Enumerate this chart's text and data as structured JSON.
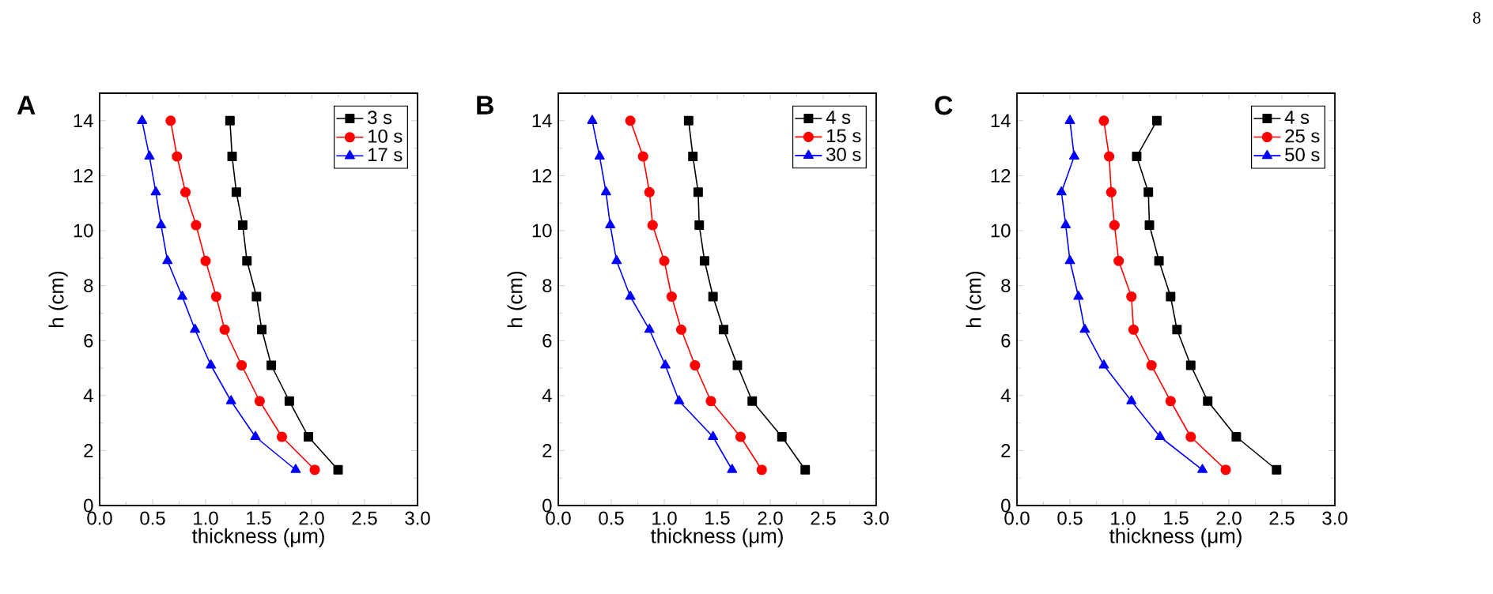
{
  "chart_data": [
    {
      "type": "line",
      "title": "A",
      "xlabel": "thickness (μm)",
      "ylabel": "h (cm)",
      "xlim": [
        0,
        3
      ],
      "ylim": [
        0,
        15
      ],
      "xticks": [
        {
          "value": 0,
          "label": "0.0"
        },
        0.5,
        {
          "value": 1,
          "label": "1.0"
        },
        1.5,
        {
          "value": 2,
          "label": "2.0"
        },
        2.5,
        {
          "value": 3,
          "label": "3.0"
        }
      ],
      "yticks": [
        0,
        2,
        4,
        6,
        8,
        10,
        12,
        14
      ],
      "legend": "top right",
      "line_style": "solid",
      "series": [
        {
          "name": "3 s",
          "color": "#000000",
          "marker": "square",
          "x": [
            1.23,
            1.25,
            1.29,
            1.35,
            1.39,
            1.48,
            1.53,
            1.62,
            1.79,
            1.97,
            2.25
          ],
          "values": [
            14,
            12.7,
            11.4,
            10.2,
            8.9,
            7.6,
            6.4,
            5.1,
            3.8,
            2.5,
            1.3
          ]
        },
        {
          "name": "10 s",
          "color": "#ff0000",
          "marker": "circle",
          "x": [
            0.67,
            0.73,
            0.81,
            0.91,
            1.0,
            1.1,
            1.18,
            1.34,
            1.51,
            1.72,
            2.03
          ],
          "values": [
            14,
            12.7,
            11.4,
            10.2,
            8.9,
            7.6,
            6.4,
            5.1,
            3.8,
            2.5,
            1.3
          ]
        },
        {
          "name": "17 s",
          "color": "#0000ff",
          "marker": "triangle",
          "x": [
            0.4,
            0.47,
            0.53,
            0.58,
            0.64,
            0.78,
            0.9,
            1.05,
            1.24,
            1.47,
            1.85
          ],
          "values": [
            14,
            12.7,
            11.4,
            10.2,
            8.9,
            7.6,
            6.4,
            5.1,
            3.8,
            2.5,
            1.3
          ]
        }
      ]
    },
    {
      "type": "line",
      "title": "B",
      "xlabel": "thickness (μm)",
      "ylabel": "h (cm)",
      "xlim": [
        0,
        3
      ],
      "ylim": [
        0,
        15
      ],
      "xticks": [
        {
          "value": 0,
          "label": "0.0"
        },
        0.5,
        {
          "value": 1,
          "label": "1.0"
        },
        1.5,
        {
          "value": 2,
          "label": "2.0"
        },
        2.5,
        {
          "value": 3,
          "label": "3.0"
        }
      ],
      "yticks": [
        0,
        2,
        4,
        6,
        8,
        10,
        12,
        14
      ],
      "legend": "top right",
      "line_style": "solid",
      "series": [
        {
          "name": "4 s",
          "color": "#000000",
          "marker": "square",
          "x": [
            1.23,
            1.27,
            1.32,
            1.33,
            1.38,
            1.46,
            1.56,
            1.69,
            1.83,
            2.11,
            2.33
          ],
          "values": [
            14,
            12.7,
            11.4,
            10.2,
            8.9,
            7.6,
            6.4,
            5.1,
            3.8,
            2.5,
            1.3
          ]
        },
        {
          "name": "15 s",
          "color": "#ff0000",
          "marker": "circle",
          "x": [
            0.68,
            0.8,
            0.86,
            0.89,
            1.0,
            1.07,
            1.16,
            1.29,
            1.44,
            1.72,
            1.92
          ],
          "values": [
            14,
            12.7,
            11.4,
            10.2,
            8.9,
            7.6,
            6.4,
            5.1,
            3.8,
            2.5,
            1.3
          ]
        },
        {
          "name": "30 s",
          "color": "#0000ff",
          "marker": "triangle",
          "x": [
            0.32,
            0.39,
            0.45,
            0.49,
            0.55,
            0.68,
            0.86,
            1.01,
            1.14,
            1.46,
            1.64
          ],
          "values": [
            14,
            12.7,
            11.4,
            10.2,
            8.9,
            7.6,
            6.4,
            5.1,
            3.8,
            2.5,
            1.3
          ]
        }
      ]
    },
    {
      "type": "line",
      "title": "C",
      "xlabel": "thickness (μm)",
      "ylabel": "h (cm)",
      "xlim": [
        0,
        3
      ],
      "ylim": [
        0,
        15
      ],
      "xticks": [
        {
          "value": 0,
          "label": "0.0"
        },
        0.5,
        {
          "value": 1,
          "label": "1.0"
        },
        1.5,
        {
          "value": 2,
          "label": "2.0"
        },
        2.5,
        {
          "value": 3,
          "label": "3.0"
        }
      ],
      "yticks": [
        0,
        2,
        4,
        6,
        8,
        10,
        12,
        14
      ],
      "legend": "top right",
      "line_style": "solid",
      "annotations": [
        "8"
      ],
      "series": [
        {
          "name": "4 s",
          "color": "#000000",
          "marker": "square",
          "x": [
            1.32,
            1.13,
            1.24,
            1.25,
            1.34,
            1.45,
            1.51,
            1.64,
            1.8,
            2.07,
            2.45
          ],
          "values": [
            14,
            12.7,
            11.4,
            10.2,
            8.9,
            7.6,
            6.4,
            5.1,
            3.8,
            2.5,
            1.3
          ]
        },
        {
          "name": "25 s",
          "color": "#ff0000",
          "marker": "circle",
          "x": [
            0.82,
            0.87,
            0.89,
            0.92,
            0.96,
            1.08,
            1.1,
            1.27,
            1.45,
            1.64,
            1.97
          ],
          "values": [
            14,
            12.7,
            11.4,
            10.2,
            8.9,
            7.6,
            6.4,
            5.1,
            3.8,
            2.5,
            1.3
          ]
        },
        {
          "name": "50 s",
          "color": "#0000ff",
          "marker": "triangle",
          "x": [
            0.5,
            0.54,
            0.42,
            0.46,
            0.5,
            0.58,
            0.64,
            0.82,
            1.08,
            1.35,
            1.75
          ],
          "values": [
            14,
            12.7,
            11.4,
            10.2,
            8.9,
            7.6,
            6.4,
            5.1,
            3.8,
            2.5,
            1.3
          ]
        }
      ]
    }
  ]
}
